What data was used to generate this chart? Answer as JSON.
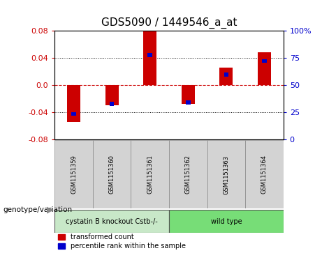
{
  "title": "GDS5090 / 1449546_a_at",
  "samples": [
    "GSM1151359",
    "GSM1151360",
    "GSM1151361",
    "GSM1151362",
    "GSM1151363",
    "GSM1151364"
  ],
  "red_values": [
    -0.055,
    -0.03,
    0.079,
    -0.028,
    0.025,
    0.048
  ],
  "blue_values": [
    -0.043,
    -0.028,
    0.044,
    -0.026,
    0.015,
    0.035
  ],
  "ylim": [
    -0.08,
    0.08
  ],
  "yticks_left": [
    -0.08,
    -0.04,
    0.0,
    0.04,
    0.08
  ],
  "yticks_right": [
    0,
    25,
    50,
    75,
    100
  ],
  "bar_color_red": "#cc0000",
  "bar_color_blue": "#0000cc",
  "bar_width": 0.35,
  "blue_bar_width": 0.12,
  "grid_color": "#000000",
  "zero_line_color": "#cc0000",
  "bg_color": "#ffffff",
  "plot_bg": "#ffffff",
  "title_fontsize": 11,
  "tick_fontsize": 8,
  "legend_label_red": "transformed count",
  "legend_label_blue": "percentile rank within the sample",
  "genotype_label": "genotype/variation",
  "group1_label": "cystatin B knockout Cstb-/-",
  "group2_label": "wild type",
  "left_tick_color": "#cc0000",
  "right_tick_color": "#0000cc",
  "sample_box_color": "#d3d3d3",
  "group1_color": "#c8e8c8",
  "group2_color": "#77dd77"
}
